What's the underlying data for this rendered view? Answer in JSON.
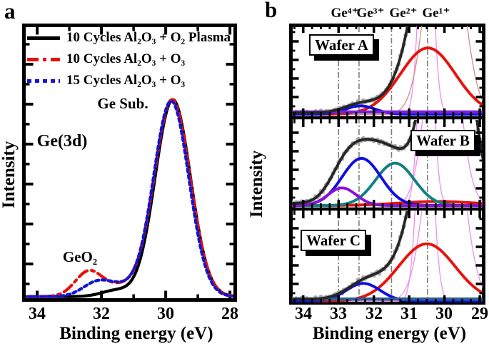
{
  "figure": {
    "panel_a_letter": "a",
    "panel_b_letter": "b"
  },
  "chart_data": {
    "type": "line",
    "description": "Ge(3d) XPS spectra; intensity (a.u.) vs binding energy (eV), x-axis reversed",
    "panels": [
      {
        "id": "a",
        "title": "Ge(3d)",
        "xlabel": "Binding energy (eV)",
        "ylabel": "Intensity",
        "x_range": [
          34.47,
          27.78
        ],
        "x_ticks": [
          34,
          32,
          30,
          28
        ],
        "annotations": {
          "substrate_peak": "Ge Sub.",
          "oxide_peak": "GeO₂"
        },
        "substrate_peak_ev": 29.8,
        "oxide_shoulder_ev": 32.4,
        "series": [
          {
            "name": "10 Cycles Al₂O₃ + O₂ Plasma",
            "color": "#000000",
            "style": "solid",
            "base": 0.006,
            "gaussians": [
              {
                "c": 29.78,
                "s": 0.55,
                "a": 0.715
              },
              {
                "c": 31.55,
                "s": 0.45,
                "a": 0.022
              }
            ]
          },
          {
            "name": "10 Cycles Al₂O₃ + O₃",
            "color": "#e8120c",
            "style": "dashdot",
            "base": 0.006,
            "gaussians": [
              {
                "c": 29.8,
                "s": 0.56,
                "a": 0.715
              },
              {
                "c": 32.4,
                "s": 0.42,
                "a": 0.09
              },
              {
                "c": 31.4,
                "s": 0.5,
                "a": 0.035
              }
            ]
          },
          {
            "name": "15 Cycles Al₂O₃ + O₃",
            "color": "#1414d2",
            "style": "dotted",
            "base": 0.006,
            "gaussians": [
              {
                "c": 29.83,
                "s": 0.55,
                "a": 0.71
              },
              {
                "c": 32.15,
                "s": 0.45,
                "a": 0.048
              },
              {
                "c": 31.4,
                "s": 0.5,
                "a": 0.03
              }
            ]
          }
        ]
      },
      {
        "id": "b",
        "xlabel": "Binding energy (eV)",
        "ylabel": "Intensity",
        "x_range": [
          34.4,
          28.84
        ],
        "x_ticks": [
          34,
          33,
          32,
          31,
          30,
          29
        ],
        "oxidation_states": [
          {
            "label": "Ge⁴⁺",
            "x": 33.0
          },
          {
            "label": "Ge³⁺",
            "x": 32.42
          },
          {
            "label": "Ge²⁺",
            "x": 31.5
          },
          {
            "label": "Ge¹⁺",
            "x": 30.48
          }
        ],
        "data_color": "#a8a8a8",
        "envelope_color": "#262626",
        "gridline_color": "#7d7d7d",
        "wafers": [
          {
            "label": "Wafer A",
            "envelope": {
              "base": 0.02,
              "gaussians": [
                {
                  "c": 29.8,
                  "s": 0.75,
                  "a": 4.0
                },
                {
                  "c": 32.4,
                  "s": 0.45,
                  "a": 0.1
                },
                {
                  "c": 31.55,
                  "s": 0.5,
                  "a": 0.06
                }
              ]
            },
            "components": [
              {
                "name": "Ge1+ oxide",
                "color": "#e8120c",
                "gaussians": [
                  {
                    "c": 30.47,
                    "s": 0.78,
                    "a": 0.8
                  }
                ]
              },
              {
                "name": "Ge3+ oxide",
                "color": "#0f0fe0",
                "gaussians": [
                  {
                    "c": 32.38,
                    "s": 0.42,
                    "a": 0.1
                  }
                ]
              },
              {
                "name": "baseline",
                "color": "#7a1fd6",
                "flat": 0.03
              }
            ],
            "thin": [
              {
                "color": "#f08cf0",
                "gaussians": [
                  {
                    "c": 30.52,
                    "s": 0.18,
                    "a": 3.0
                  }
                ]
              },
              {
                "color": "#cf8d85",
                "gaussians": [
                  {
                    "c": 30.0,
                    "s": 0.45,
                    "a": 3.0
                  }
                ]
              }
            ]
          },
          {
            "label": "Wafer B",
            "envelope": {
              "base": 0.03,
              "gaussians": [
                {
                  "c": 32.35,
                  "s": 0.55,
                  "a": 0.6
                },
                {
                  "c": 31.4,
                  "s": 0.55,
                  "a": 0.52
                },
                {
                  "c": 32.9,
                  "s": 0.4,
                  "a": 0.2
                },
                {
                  "c": 29.9,
                  "s": 0.5,
                  "a": 4.0
                }
              ]
            },
            "components": [
              {
                "name": "Ge1+ oxide",
                "color": "#e8120c",
                "gaussians": [
                  {
                    "c": 30.2,
                    "s": 1.1,
                    "a": 0.05
                  }
                ]
              },
              {
                "name": "Ge2+ oxide",
                "color": "#0e8180",
                "gaussians": [
                  {
                    "c": 31.4,
                    "s": 0.55,
                    "a": 0.53
                  }
                ]
              },
              {
                "name": "Ge3+ oxide",
                "color": "#0f0fe0",
                "gaussians": [
                  {
                    "c": 32.35,
                    "s": 0.55,
                    "a": 0.59
                  }
                ]
              },
              {
                "name": "Ge4+ oxide",
                "color": "#8a10d8",
                "gaussians": [
                  {
                    "c": 32.9,
                    "s": 0.4,
                    "a": 0.22
                  }
                ]
              }
            ],
            "thin": [
              {
                "color": "#f08cf0",
                "gaussians": [
                  {
                    "c": 30.52,
                    "s": 0.18,
                    "a": 3.0
                  }
                ]
              },
              {
                "color": "#f08cf0",
                "gaussians": [
                  {
                    "c": 30.05,
                    "s": 0.4,
                    "a": 3.0
                  }
                ]
              }
            ]
          },
          {
            "label": "Wafer C",
            "envelope": {
              "base": 0.025,
              "gaussians": [
                {
                  "c": 29.85,
                  "s": 0.7,
                  "a": 4.0
                },
                {
                  "c": 32.3,
                  "s": 0.5,
                  "a": 0.16
                },
                {
                  "c": 31.5,
                  "s": 0.6,
                  "a": 0.18
                }
              ]
            },
            "components": [
              {
                "name": "Ge1+ oxide",
                "color": "#e8120c",
                "gaussians": [
                  {
                    "c": 30.5,
                    "s": 0.8,
                    "a": 0.68
                  }
                ]
              },
              {
                "name": "Ge3+ oxide",
                "color": "#0f0fe0",
                "gaussians": [
                  {
                    "c": 32.3,
                    "s": 0.48,
                    "a": 0.21
                  }
                ]
              },
              {
                "name": "baseline",
                "color": "#2b5f93",
                "flat": 0.028
              }
            ],
            "thin": [
              {
                "color": "#f08cf0",
                "gaussians": [
                  {
                    "c": 30.55,
                    "s": 0.2,
                    "a": 3.0
                  }
                ]
              },
              {
                "color": "#f08cf0",
                "gaussians": [
                  {
                    "c": 30.0,
                    "s": 0.45,
                    "a": 3.0
                  }
                ]
              }
            ]
          }
        ]
      }
    ]
  }
}
